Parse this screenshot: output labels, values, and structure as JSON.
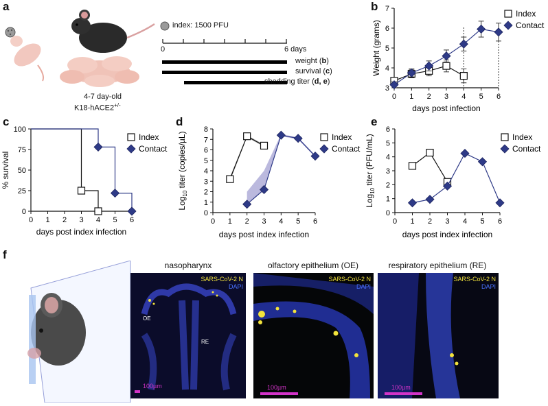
{
  "panels": {
    "a": {
      "label": "a",
      "index_dose": "index: 1500 PFU",
      "timeline_start": "0",
      "timeline_end": "6 days",
      "age_label": "4-7 day-old",
      "strain_label": "K18-hACE2",
      "strain_sup": "+/-",
      "bars": [
        {
          "text": "weight (",
          "ref": "b",
          "close": ")"
        },
        {
          "text": "survival (",
          "ref": "c",
          "close": ")"
        },
        {
          "text": "shedding titer (",
          "ref": "d, e",
          "close": ")"
        }
      ]
    },
    "b": {
      "label": "b"
    },
    "c": {
      "label": "c"
    },
    "d": {
      "label": "d"
    },
    "e": {
      "label": "e"
    },
    "f": {
      "label": "f",
      "images": [
        {
          "title": "nasopharynx",
          "chan1": "SARS-CoV-2 N",
          "chan2": "DAPI",
          "scale": "100µm",
          "ann1": "OE",
          "ann2": "RE"
        },
        {
          "title": "olfactory epithelium (OE)",
          "chan1": "SARS-CoV-2 N",
          "chan2": "DAPI",
          "scale": "100µm"
        },
        {
          "title": "respiratory epithelium (RE)",
          "chan1": "SARS-CoV-2 N",
          "chan2": "DAPI",
          "scale": "100µm"
        }
      ]
    }
  },
  "colors": {
    "index": "#111111",
    "contact": "#2e3a87",
    "contact_fill": "#9e9bd0",
    "index_fill": "#888888"
  },
  "chart_data": [
    {
      "panel": "b",
      "type": "line",
      "xlabel": "days post infection",
      "ylabel": "Weight (grams)",
      "xlim": [
        0,
        6
      ],
      "ylim": [
        3,
        7
      ],
      "xticks": [
        "0",
        "1",
        "2",
        "3",
        "4",
        "5",
        "6"
      ],
      "yticks": [
        "3",
        "4",
        "5",
        "6",
        "7"
      ],
      "legend_position": "top-right",
      "series": [
        {
          "name": "Index",
          "marker": "square",
          "x": [
            0,
            1,
            2,
            3,
            4
          ],
          "y": [
            3.35,
            3.7,
            3.85,
            4.1,
            3.6
          ],
          "err": [
            0.15,
            0.2,
            0.25,
            0.3,
            0.35
          ]
        },
        {
          "name": "Contact",
          "marker": "diamond",
          "x": [
            0,
            1,
            2,
            3,
            4,
            5,
            6
          ],
          "y": [
            3.15,
            3.75,
            4.1,
            4.6,
            5.2,
            5.95,
            5.8
          ],
          "err": [
            0.15,
            0.2,
            0.25,
            0.3,
            0.35,
            0.4,
            0.45
          ]
        }
      ],
      "vlines": [
        4,
        6
      ]
    },
    {
      "panel": "c",
      "type": "line",
      "xlabel": "days post index infection",
      "ylabel": "% survival",
      "xlim": [
        0,
        6
      ],
      "ylim": [
        0,
        100
      ],
      "xticks": [
        "0",
        "1",
        "2",
        "3",
        "4",
        "5",
        "6"
      ],
      "yticks": [
        "0",
        "25",
        "50",
        "75",
        "100"
      ],
      "legend_position": "top-right",
      "series": [
        {
          "name": "Index",
          "marker": "square",
          "x": [
            3,
            4
          ],
          "y": [
            25,
            0
          ],
          "steps": [
            [
              0,
              100
            ],
            [
              3,
              100
            ],
            [
              3,
              25
            ],
            [
              4,
              25
            ],
            [
              4,
              0
            ]
          ]
        },
        {
          "name": "Contact",
          "marker": "diamond",
          "x": [
            4,
            5,
            6
          ],
          "y": [
            78,
            22,
            0
          ],
          "steps": [
            [
              0,
              100
            ],
            [
              4,
              100
            ],
            [
              4,
              78
            ],
            [
              5,
              78
            ],
            [
              5,
              22
            ],
            [
              6,
              22
            ],
            [
              6,
              0
            ]
          ]
        }
      ]
    },
    {
      "panel": "d",
      "type": "line",
      "xlabel": "days post index infection",
      "ylabel": "Log10 titer (copies/µL)",
      "ylabel_main": "Log",
      "ylabel_sub": "10",
      "ylabel_rest": " titer (copies/µL)",
      "xlim": [
        0,
        6
      ],
      "ylim": [
        0,
        8
      ],
      "xticks": [
        "0",
        "1",
        "2",
        "3",
        "4",
        "5",
        "6"
      ],
      "yticks": [
        "0",
        "1",
        "2",
        "3",
        "4",
        "5",
        "6",
        "7",
        "8"
      ],
      "legend_position": "top-right",
      "series": [
        {
          "name": "Index",
          "marker": "square",
          "x": [
            1,
            2,
            3
          ],
          "y": [
            3.2,
            7.3,
            6.4
          ],
          "band_low": [
            3.0,
            7.2,
            6.3
          ],
          "band_high": [
            3.4,
            7.4,
            6.5
          ]
        },
        {
          "name": "Contact",
          "marker": "diamond",
          "x": [
            2,
            3,
            4,
            5,
            6
          ],
          "y": [
            0.8,
            2.2,
            7.4,
            7.1,
            5.4
          ],
          "band_low": [
            0.8,
            2.2,
            7.3,
            7.0,
            5.3
          ],
          "band_high": [
            2.0,
            4.0,
            7.5,
            7.2,
            5.5
          ]
        }
      ]
    },
    {
      "panel": "e",
      "type": "line",
      "xlabel": "days post index infection",
      "ylabel": "Log10 titer (PFU/mL)",
      "ylabel_main": "Log",
      "ylabel_sub": "10",
      "ylabel_rest": " titer (PFU/mL)",
      "xlim": [
        0,
        6
      ],
      "ylim": [
        0,
        6
      ],
      "xticks": [
        "0",
        "1",
        "2",
        "3",
        "4",
        "5",
        "6"
      ],
      "yticks": [
        "0",
        "1",
        "2",
        "3",
        "4",
        "5",
        "6"
      ],
      "legend_position": "top-right",
      "series": [
        {
          "name": "Index",
          "marker": "square",
          "x": [
            1,
            2,
            3
          ],
          "y": [
            3.35,
            4.3,
            2.2
          ]
        },
        {
          "name": "Contact",
          "marker": "diamond",
          "x": [
            1,
            2,
            3,
            4,
            5,
            6
          ],
          "y": [
            0.7,
            0.95,
            1.9,
            4.25,
            3.65,
            0.7
          ]
        }
      ]
    }
  ]
}
